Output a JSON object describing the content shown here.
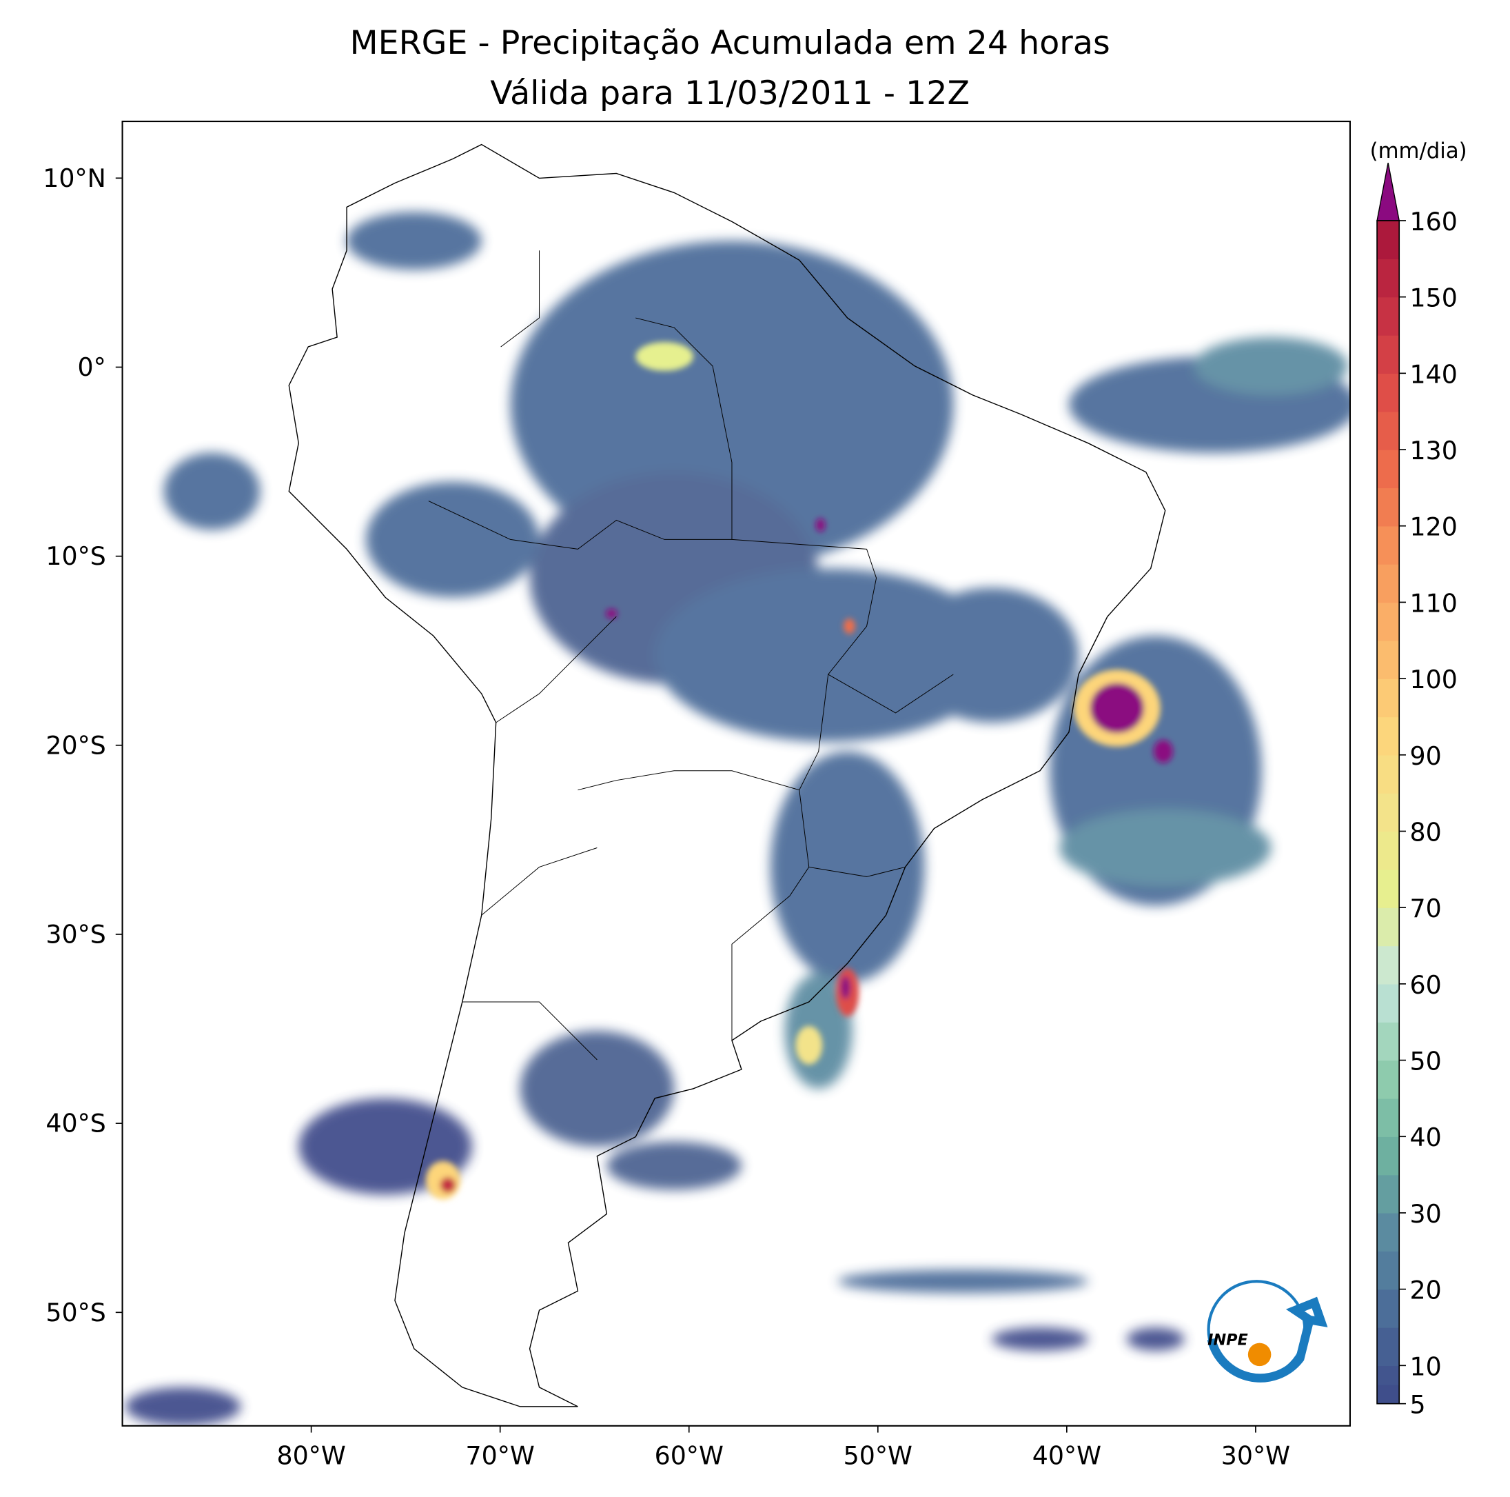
{
  "chart_data": {
    "type": "map",
    "title": "MERGE - Precipitação Acumulada em 24 horas",
    "subtitle": "Válida para 11/03/2011 - 12Z",
    "xlim": [
      -90,
      -25
    ],
    "ylim": [
      -56,
      13
    ],
    "xticks": [
      {
        "value": -80,
        "label": "80°W"
      },
      {
        "value": -70,
        "label": "70°W"
      },
      {
        "value": -60,
        "label": "60°W"
      },
      {
        "value": -50,
        "label": "50°W"
      },
      {
        "value": -40,
        "label": "40°W"
      },
      {
        "value": -30,
        "label": "30°W"
      }
    ],
    "yticks": [
      {
        "value": 10,
        "label": "10°N"
      },
      {
        "value": 0,
        "label": "0°"
      },
      {
        "value": -10,
        "label": "10°S"
      },
      {
        "value": -20,
        "label": "20°S"
      },
      {
        "value": -30,
        "label": "30°S"
      },
      {
        "value": -40,
        "label": "40°S"
      },
      {
        "value": -50,
        "label": "50°S"
      }
    ],
    "colorbar": {
      "label": "(mm/dia)",
      "lim": [
        5,
        160
      ],
      "ticks": [
        5,
        10,
        20,
        30,
        40,
        50,
        60,
        70,
        80,
        90,
        100,
        110,
        120,
        130,
        140,
        150,
        160
      ],
      "palette": [
        "#3e4a89",
        "#4a6a98",
        "#5a8aa0",
        "#6fb3a0",
        "#94d0b0",
        "#c6e6de",
        "#e6f08f",
        "#f3e38a",
        "#fdd57a",
        "#fbb66b",
        "#f7965a",
        "#ee6e4c",
        "#de4d48",
        "#c42e43",
        "#a5133a"
      ],
      "over_color": "#8b0a80"
    },
    "logo": "INPE"
  }
}
